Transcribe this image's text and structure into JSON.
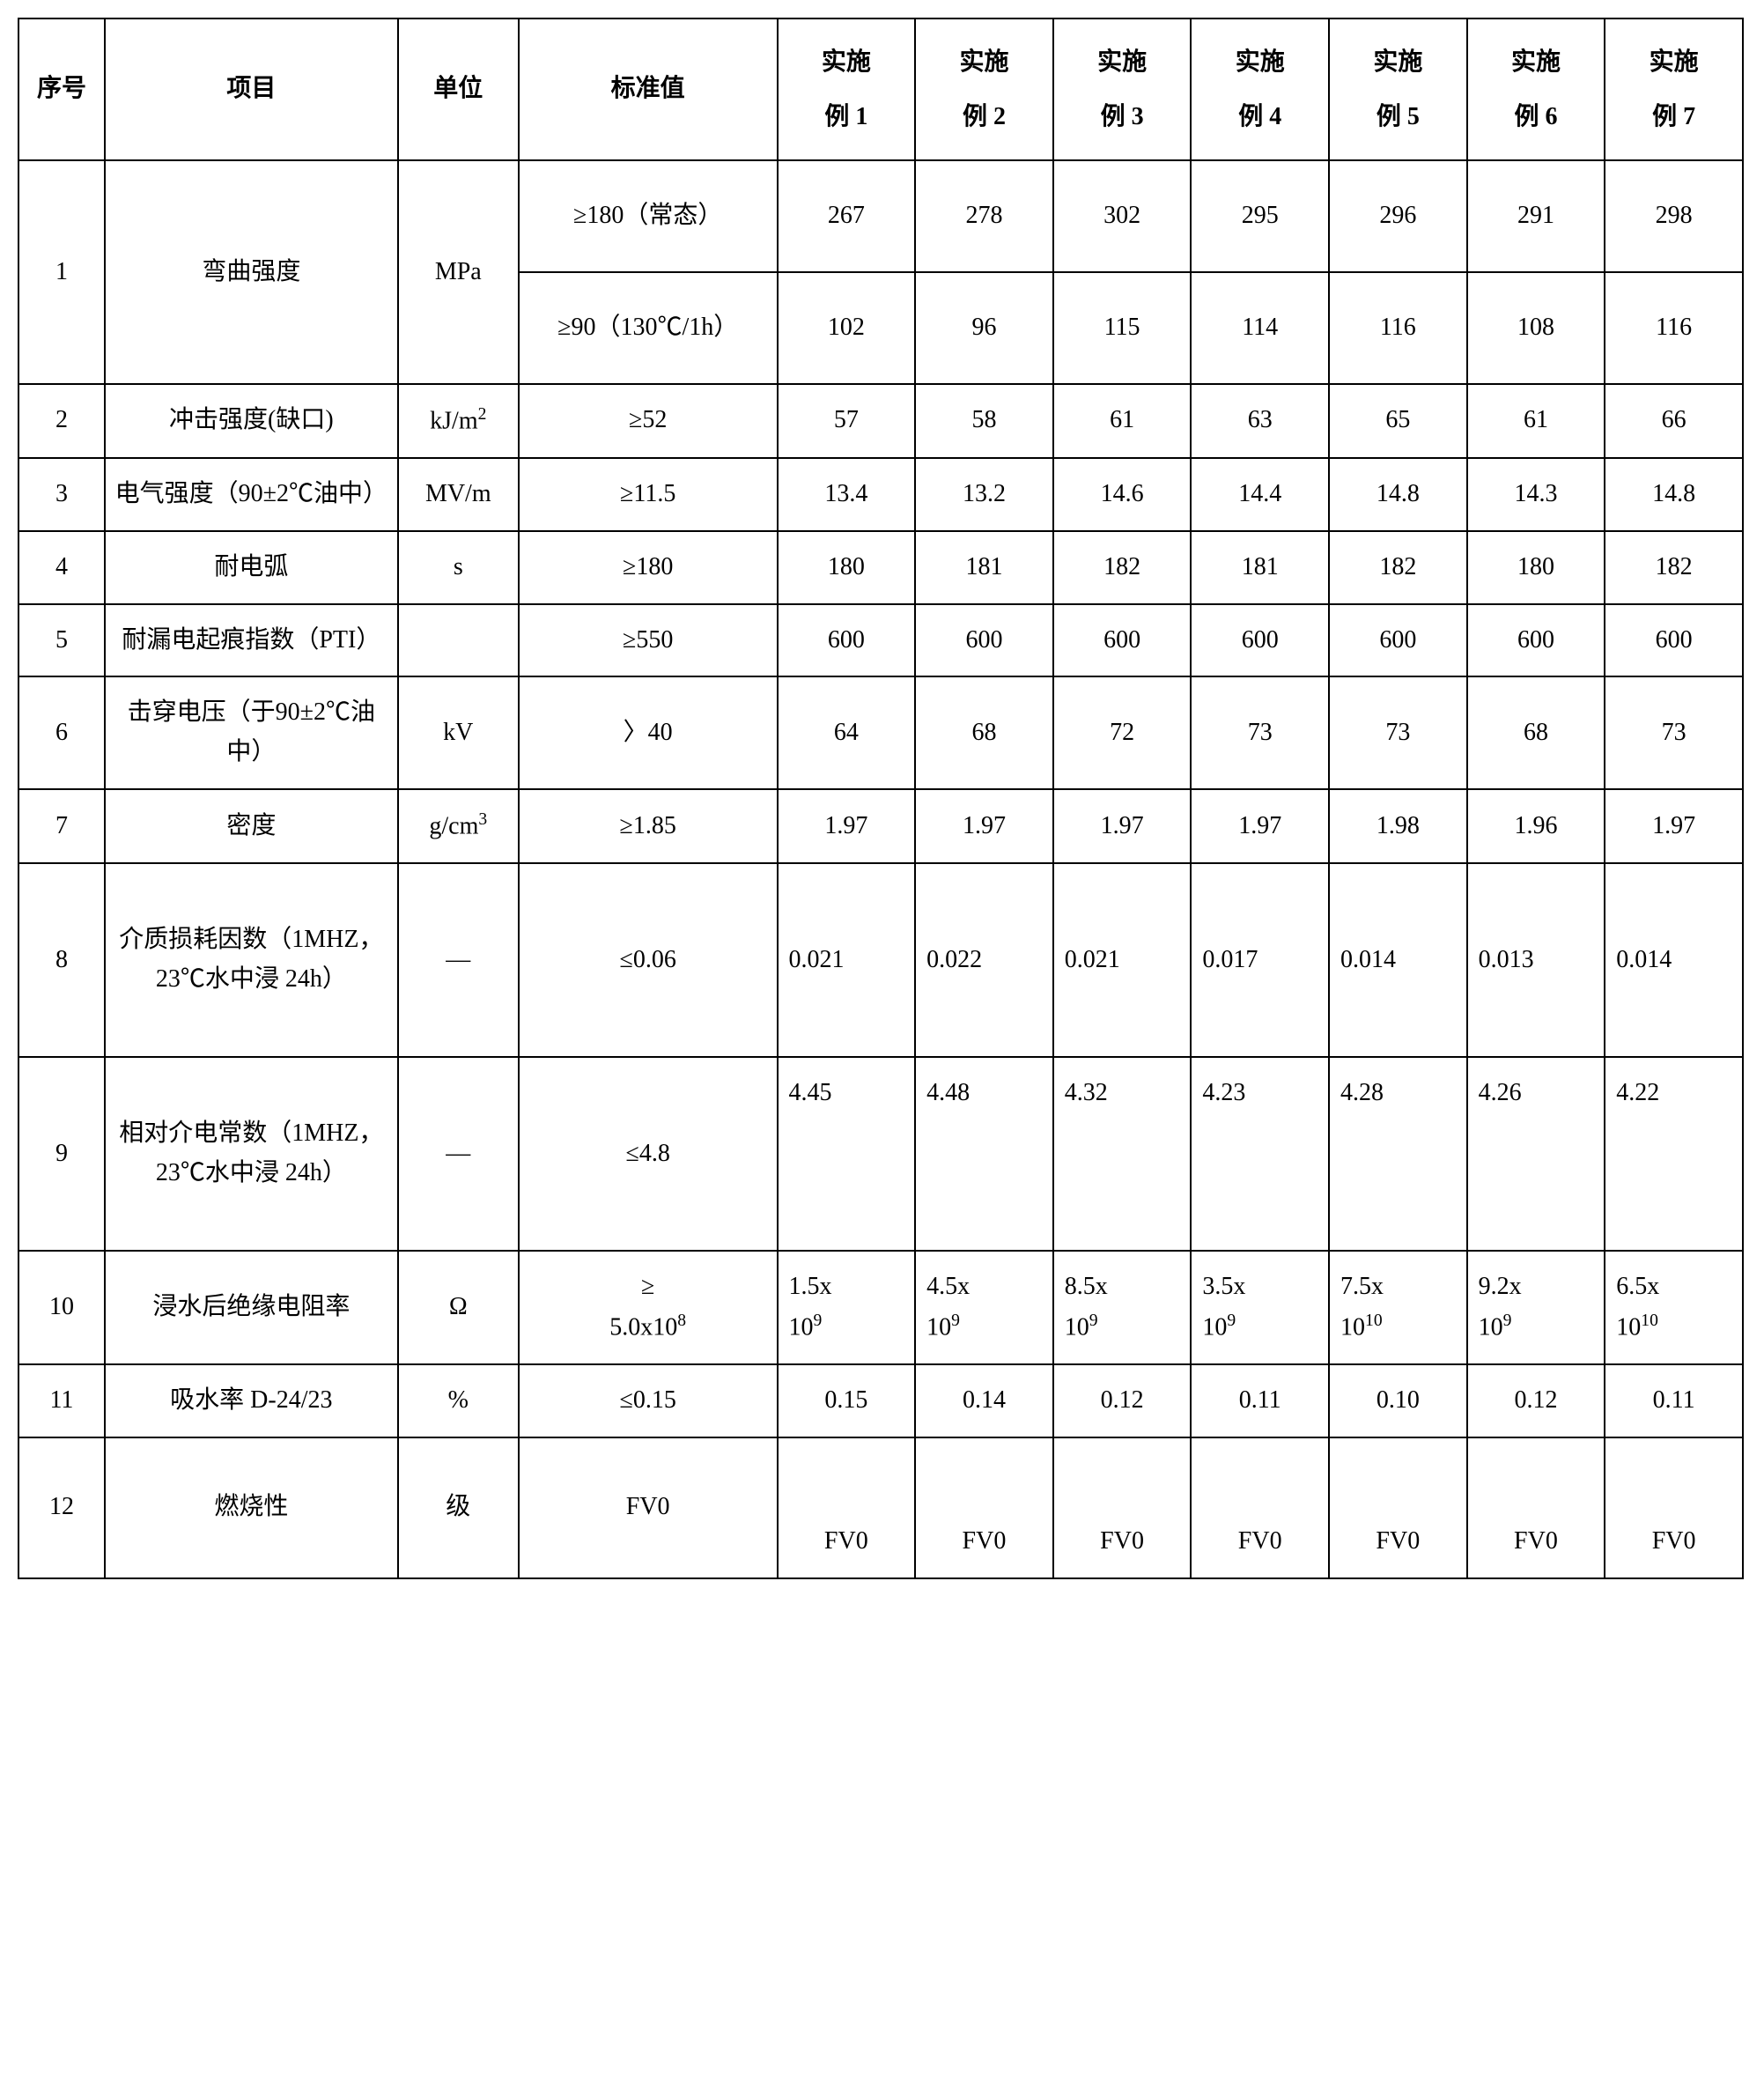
{
  "table": {
    "headers": {
      "seq": "序号",
      "item": "项目",
      "unit": "单位",
      "std": "标准值",
      "ex1a": "实施",
      "ex1b": "例 1",
      "ex2a": "实施",
      "ex2b": "例 2",
      "ex3a": "实施",
      "ex3b": "例 3",
      "ex4a": "实施",
      "ex4b": "例 4",
      "ex5a": "实施",
      "ex5b": "例 5",
      "ex6a": "实施",
      "ex6b": "例 6",
      "ex7a": "实施",
      "ex7b": "例 7"
    },
    "rows": [
      {
        "seq": "1",
        "item": "弯曲强度",
        "unit": "MPa",
        "sub": [
          {
            "std": "≥180（常态）",
            "v": [
              "267",
              "278",
              "302",
              "295",
              "296",
              "291",
              "298"
            ]
          },
          {
            "std": "≥90（130℃/1h）",
            "v": [
              "102",
              "96",
              "115",
              "114",
              "116",
              "108",
              "116"
            ]
          }
        ]
      },
      {
        "seq": "2",
        "item": "冲击强度(缺口)",
        "unit_html": "kJ/m<sup>2</sup>",
        "std": "≥52",
        "v": [
          "57",
          "58",
          "61",
          "63",
          "65",
          "61",
          "66"
        ]
      },
      {
        "seq": "3",
        "item": "电气强度（90±2℃油中）",
        "unit": "MV/m",
        "std": "≥11.5",
        "v": [
          "13.4",
          "13.2",
          "14.6",
          "14.4",
          "14.8",
          "14.3",
          "14.8"
        ]
      },
      {
        "seq": "4",
        "item": "耐电弧",
        "unit": "s",
        "std": "≥180",
        "v": [
          "180",
          "181",
          "182",
          "181",
          "182",
          "180",
          "182"
        ]
      },
      {
        "seq": "5",
        "item": "耐漏电起痕指数（PTI）",
        "unit": "",
        "std": "≥550",
        "v": [
          "600",
          "600",
          "600",
          "600",
          "600",
          "600",
          "600"
        ]
      },
      {
        "seq": "6",
        "item": "击穿电压（于90±2℃油中）",
        "unit": "kV",
        "std": "〉40",
        "v": [
          "64",
          "68",
          "72",
          "73",
          "73",
          "68",
          "73"
        ]
      },
      {
        "seq": "7",
        "item": "密度",
        "unit_html": "g/cm<sup>3</sup>",
        "std": "≥1.85",
        "v": [
          "1.97",
          "1.97",
          "1.97",
          "1.97",
          "1.98",
          "1.96",
          "1.97"
        ]
      },
      {
        "seq": "8",
        "item": "介质损耗因数（1MHZ，23℃水中浸 24h）",
        "unit": "—",
        "std": "≤0.06",
        "align": "left",
        "v": [
          "0.021",
          "0.022",
          "0.021",
          "0.017",
          "0.014",
          "0.013",
          "0.014"
        ]
      },
      {
        "seq": "9",
        "item": "相对介电常数（1MHZ，23℃水中浸 24h）",
        "unit": "—",
        "std": "≤4.8",
        "align": "left-top",
        "v": [
          "4.45",
          "4.48",
          "4.32",
          "4.23",
          "4.28",
          "4.26",
          "4.22"
        ]
      },
      {
        "seq": "10",
        "item": "浸水后绝缘电阻率",
        "unit": "Ω",
        "std_html": "≥<br>5.0x10<sup>8</sup>",
        "align": "left",
        "v_html": [
          "1.5x<br>10<sup>9</sup>",
          "4.5x<br>10<sup>9</sup>",
          "8.5x<br>10<sup>9</sup>",
          "3.5x<br>10<sup>9</sup>",
          "7.5x<br>10<sup>10</sup>",
          "9.2x<br>10<sup>9</sup>",
          "6.5x<br>10<sup>10</sup>"
        ]
      },
      {
        "seq": "11",
        "item": "吸水率 D-24/23",
        "unit": "%",
        "std": "≤0.15",
        "v": [
          "0.15",
          "0.14",
          "0.12",
          "0.11",
          "0.10",
          "0.12",
          "0.11"
        ]
      },
      {
        "seq": "12",
        "item": "燃烧性",
        "unit": "级",
        "std": "FV0",
        "valign": "bottom",
        "v": [
          "FV0",
          "FV0",
          "FV0",
          "FV0",
          "FV0",
          "FV0",
          "FV0"
        ]
      }
    ],
    "colors": {
      "border": "#000000",
      "background": "#ffffff",
      "text": "#000000"
    },
    "font": {
      "family": "SimSun",
      "size_pt": 14
    }
  }
}
